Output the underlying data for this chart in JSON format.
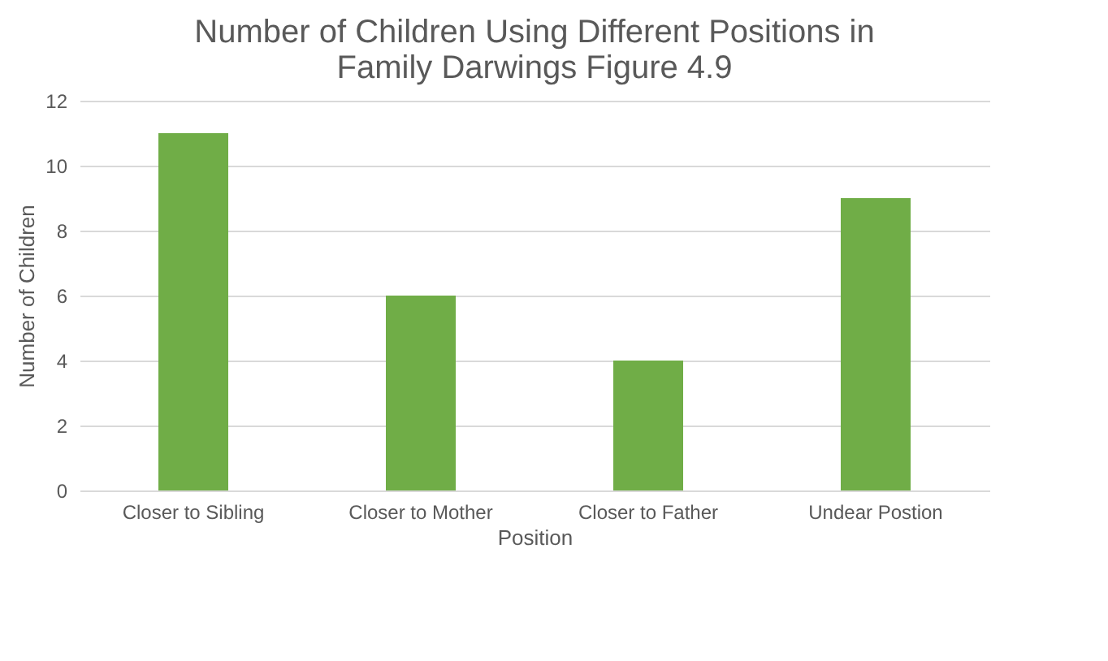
{
  "chart_data": {
    "type": "bar",
    "title": "Number of Children Using Different  Positions in\nFamily Darwings Figure 4.9",
    "xlabel": "Position",
    "ylabel": "Number of Children",
    "categories": [
      "Closer to Sibling",
      "Closer to Mother",
      "Closer to Father",
      "Undear Postion"
    ],
    "values": [
      11,
      6,
      4,
      9
    ],
    "color": "#70ad47",
    "ylim": [
      0,
      12
    ],
    "yticks": [
      0,
      2,
      4,
      6,
      8,
      10,
      12
    ],
    "grid": "y"
  }
}
